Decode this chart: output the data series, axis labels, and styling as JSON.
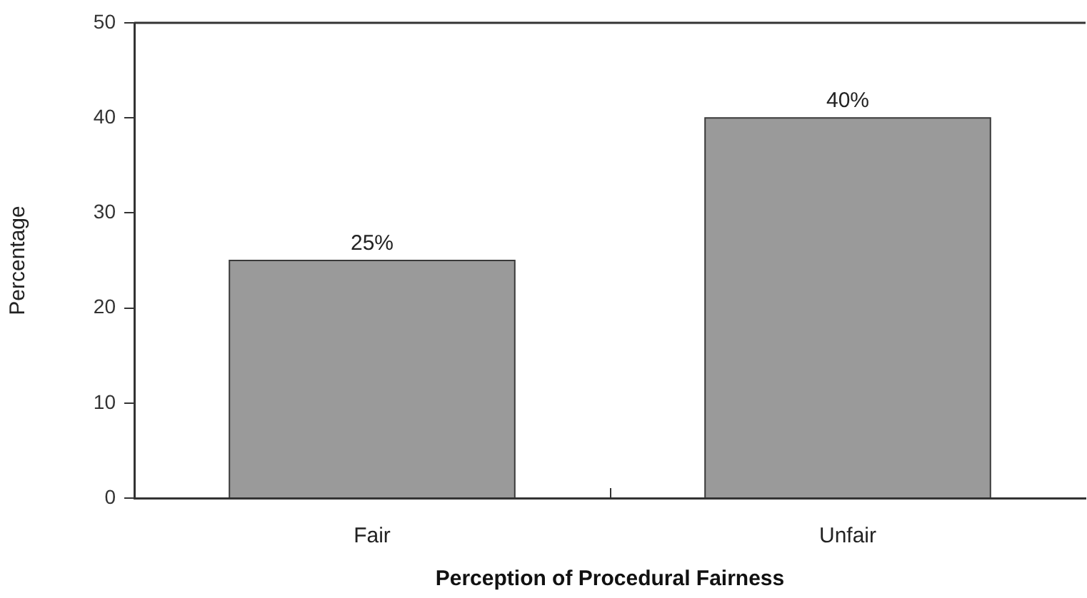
{
  "chart_data": {
    "type": "bar",
    "xlabel": "Perception of Procedural Fairness",
    "ylabel": "Percentage",
    "categories": [
      "Fair",
      "Unfair"
    ],
    "values": [
      25,
      40
    ],
    "color": "#9a9a9a",
    "value_labels": [
      "25%",
      "40%"
    ],
    "ylim": [
      0,
      50
    ],
    "yticks": [
      0,
      10,
      20,
      30,
      40,
      50
    ]
  }
}
